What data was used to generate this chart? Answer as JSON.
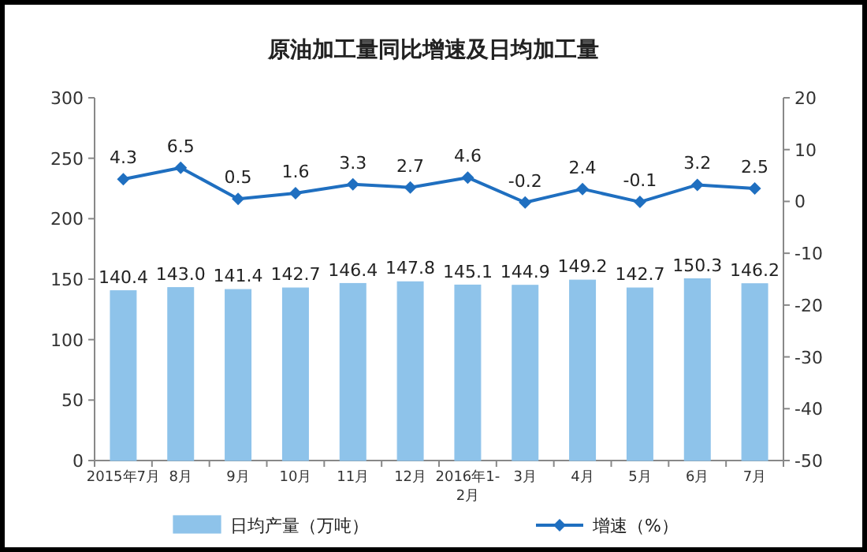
{
  "chart_data": {
    "type": "bar",
    "title": "原油加工量同比增速及日均加工量",
    "categories": [
      "2015年7月",
      "8月",
      "9月",
      "10月",
      "11月",
      "12月",
      "2016年1-2月",
      "3月",
      "4月",
      "5月",
      "6月",
      "7月"
    ],
    "series": [
      {
        "name": "日均产量（万吨）",
        "color": "#8ec3ea",
        "values": [
          140.4,
          143.0,
          141.4,
          142.7,
          146.4,
          147.8,
          145.1,
          144.9,
          149.2,
          142.7,
          150.3,
          146.2
        ],
        "value_labels": [
          "140.4",
          "143.0",
          "141.4",
          "142.7",
          "146.4",
          "147.8",
          "145.1",
          "144.9",
          "149.2",
          "142.7",
          "150.3",
          "146.2"
        ]
      },
      {
        "name": "增速（%）",
        "type": "line",
        "axis": "y2",
        "color": "#1f6fc0",
        "marker": "diamond",
        "values": [
          4.3,
          6.5,
          0.5,
          1.6,
          3.3,
          2.7,
          4.6,
          -0.2,
          2.4,
          -0.1,
          3.2,
          2.5
        ],
        "value_labels": [
          "4.3",
          "6.5",
          "0.5",
          "1.6",
          "3.3",
          "2.7",
          "4.6",
          "-0.2",
          "2.4",
          "-0.1",
          "3.2",
          "2.5"
        ]
      }
    ],
    "ylim": [
      0,
      300
    ],
    "yticks": [
      0,
      50,
      100,
      150,
      200,
      250,
      300
    ],
    "y2lim": [
      -50,
      20
    ],
    "y2ticks": [
      -50,
      -40,
      -30,
      -20,
      -10,
      0,
      10,
      20
    ],
    "legend": "bottom",
    "grid": false
  }
}
